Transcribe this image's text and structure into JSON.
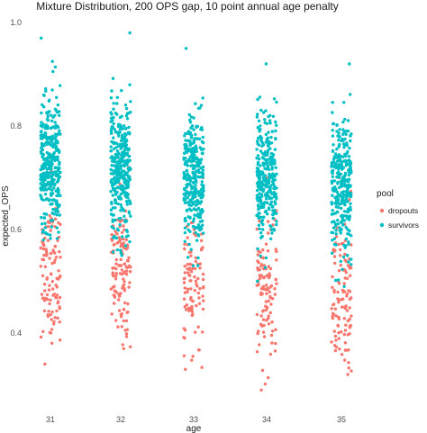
{
  "chart_data": {
    "type": "scatter",
    "title": "Mixture Distribution, 200 OPS gap, 10 point annual age penalty",
    "xlabel": "age",
    "ylabel": "expected_OPS",
    "categories": [
      "31",
      "32",
      "33",
      "34",
      "35"
    ],
    "ylim": [
      0.28,
      1.0
    ],
    "y_ticks": [
      0.4,
      0.6,
      0.8,
      1.0
    ],
    "y_tick_labels": [
      "0.4",
      "0.6",
      "0.8",
      "1.0"
    ],
    "grid": false,
    "jitter": true,
    "legend": {
      "title": "pool",
      "position": "right",
      "entries": [
        "dropouts",
        "survivors"
      ]
    },
    "series": [
      {
        "name": "dropouts",
        "color": "#F8766D",
        "groups": [
          {
            "x": "31",
            "n": 110,
            "mean": 0.52,
            "sd": 0.07,
            "min": 0.34,
            "max": 0.72
          },
          {
            "x": "32",
            "n": 120,
            "mean": 0.52,
            "sd": 0.07,
            "min": 0.37,
            "max": 0.72
          },
          {
            "x": "33",
            "n": 100,
            "mean": 0.5,
            "sd": 0.07,
            "min": 0.33,
            "max": 0.7
          },
          {
            "x": "34",
            "n": 110,
            "mean": 0.49,
            "sd": 0.07,
            "min": 0.29,
            "max": 0.7
          },
          {
            "x": "35",
            "n": 110,
            "mean": 0.48,
            "sd": 0.07,
            "min": 0.32,
            "max": 0.7
          }
        ]
      },
      {
        "name": "survivors",
        "color": "#00BFC4",
        "groups": [
          {
            "x": "31",
            "n": 330,
            "mean": 0.73,
            "sd": 0.065,
            "min": 0.58,
            "max": 0.97
          },
          {
            "x": "32",
            "n": 340,
            "mean": 0.72,
            "sd": 0.065,
            "min": 0.55,
            "max": 0.98
          },
          {
            "x": "33",
            "n": 320,
            "mean": 0.71,
            "sd": 0.065,
            "min": 0.53,
            "max": 0.95
          },
          {
            "x": "34",
            "n": 310,
            "mean": 0.7,
            "sd": 0.065,
            "min": 0.5,
            "max": 0.92
          },
          {
            "x": "35",
            "n": 310,
            "mean": 0.69,
            "sd": 0.065,
            "min": 0.49,
            "max": 0.92
          }
        ]
      }
    ]
  }
}
